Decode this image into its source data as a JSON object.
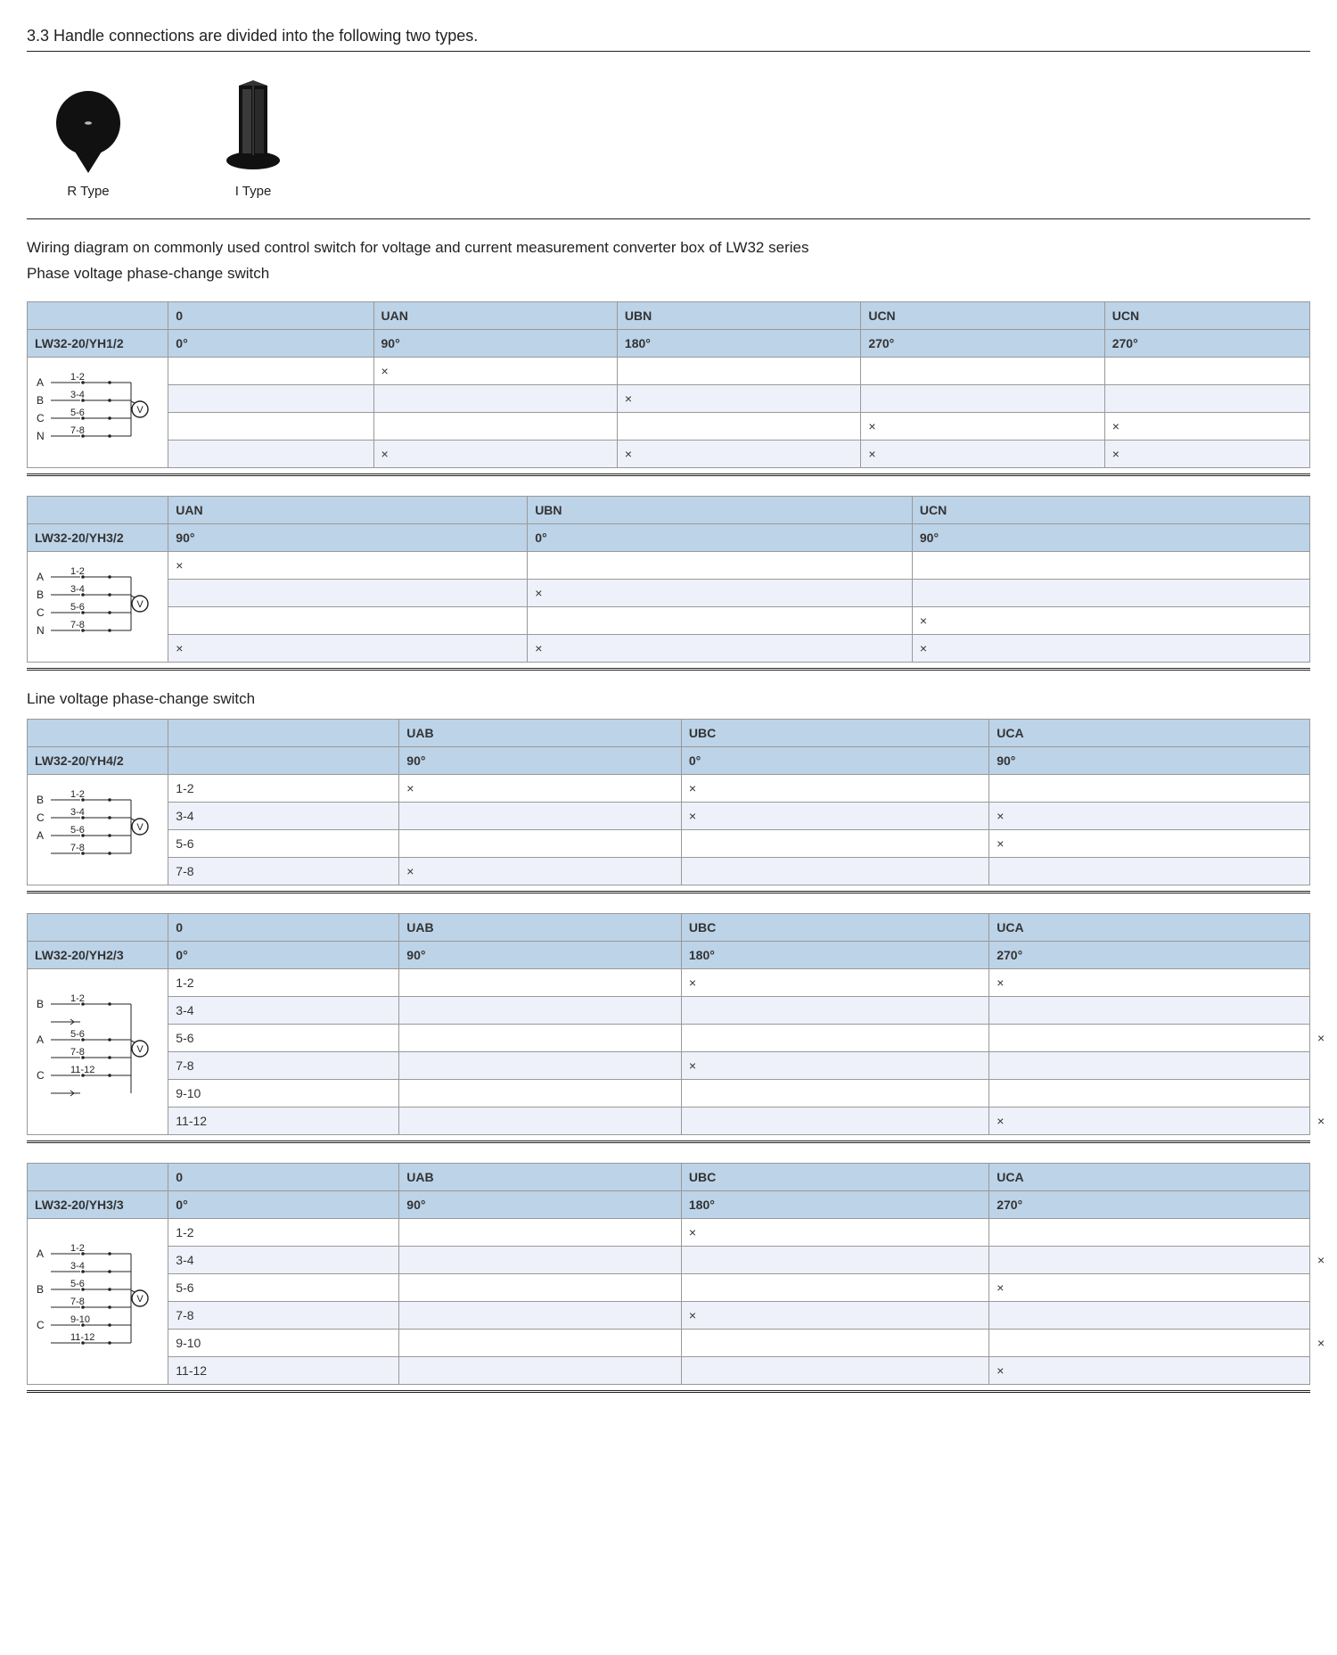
{
  "section_title": "3.3 Handle connections are divided into the following two types.",
  "handles": {
    "r_label": "R Type",
    "i_label": "I Type"
  },
  "desc_line1": "Wiring diagram on commonly used control switch for voltage and current measurement converter box of LW32 series",
  "desc_line2": "Phase voltage phase-change switch",
  "line_voltage_heading": "Line voltage phase-change switch",
  "colors": {
    "header_bg": "#bcd3e8",
    "even_bg": "#eef1fa",
    "border": "#999999",
    "rule": "#222222"
  },
  "table1": {
    "model": "LW32-20/YH1/2",
    "col_widths_pct": [
      11,
      16,
      19,
      19,
      19,
      16
    ],
    "headers": [
      "",
      "0",
      "UAN",
      "UBN",
      "UCN",
      "UCN"
    ],
    "angles": [
      "0°",
      "90°",
      "180°",
      "270°",
      "270°"
    ],
    "diagram_labels": [
      "A",
      "B",
      "C",
      "N"
    ],
    "diagram_pairs": [
      "1-2",
      "3-4",
      "5-6",
      "7-8"
    ],
    "rows": [
      [
        "",
        "×",
        "",
        "",
        ""
      ],
      [
        "",
        "",
        "×",
        "",
        ""
      ],
      [
        "",
        "",
        "",
        "×",
        "×"
      ],
      [
        "",
        "×",
        "×",
        "×",
        "×"
      ]
    ]
  },
  "table2": {
    "model": "LW32-20/YH3/2",
    "col_widths_pct": [
      11,
      28,
      30,
      31
    ],
    "headers": [
      "",
      "UAN",
      "UBN",
      "UCN"
    ],
    "angles": [
      "90°",
      "0°",
      "90°"
    ],
    "diagram_labels": [
      "A",
      "B",
      "C",
      "N"
    ],
    "diagram_pairs": [
      "1-2",
      "3-4",
      "5-6",
      "7-8"
    ],
    "rows": [
      [
        "×",
        "",
        ""
      ],
      [
        "",
        "×",
        ""
      ],
      [
        "",
        "",
        "×"
      ],
      [
        "×",
        "×",
        "×"
      ]
    ]
  },
  "table3": {
    "model": "LW32-20/YH4/2",
    "col_widths_pct": [
      11,
      18,
      22,
      24,
      25
    ],
    "headers": [
      "",
      "",
      "UAB",
      "UBC",
      "UCA"
    ],
    "angles": [
      "",
      "90°",
      "0°",
      "90°"
    ],
    "diagram_labels": [
      "B",
      "C",
      "A",
      ""
    ],
    "diagram_pairs": [
      "1-2",
      "3-4",
      "5-6",
      "7-8"
    ],
    "row_labels": [
      "1-2",
      "3-4",
      "5-6",
      "7-8"
    ],
    "rows": [
      [
        "×",
        "×",
        ""
      ],
      [
        "",
        "×",
        "×"
      ],
      [
        "",
        "",
        "×"
      ],
      [
        "×",
        "",
        ""
      ]
    ]
  },
  "table4": {
    "model": "LW32-20/YH2/3",
    "col_widths_pct": [
      11,
      18,
      22,
      24,
      25
    ],
    "headers": [
      "",
      "0",
      "UAB",
      "UBC",
      "UCA"
    ],
    "angles": [
      "0°",
      "90°",
      "180°",
      "270°"
    ],
    "diagram_labels": [
      "B",
      "",
      "A",
      "",
      "C",
      ""
    ],
    "diagram_pairs": [
      "1-2",
      "",
      "5-6",
      "7-8",
      "11-12",
      ""
    ],
    "row_labels": [
      "1-2",
      "3-4",
      "5-6",
      "7-8",
      "9-10",
      "11-12"
    ],
    "rows": [
      [
        "",
        "×",
        "×",
        ""
      ],
      [
        "",
        "",
        "",
        ""
      ],
      [
        "",
        "",
        "",
        "×"
      ],
      [
        "",
        "×",
        "",
        ""
      ],
      [
        "",
        "",
        "",
        ""
      ],
      [
        "",
        "",
        "×",
        "×"
      ]
    ]
  },
  "table5": {
    "model": "LW32-20/YH3/3",
    "col_widths_pct": [
      11,
      18,
      22,
      24,
      25
    ],
    "headers": [
      "",
      "0",
      "UAB",
      "UBC",
      "UCA"
    ],
    "angles": [
      "0°",
      "90°",
      "180°",
      "270°"
    ],
    "diagram_labels": [
      "A",
      "",
      "B",
      "",
      "C",
      ""
    ],
    "diagram_pairs": [
      "1-2",
      "3-4",
      "5-6",
      "7-8",
      "9-10",
      "11-12"
    ],
    "row_labels": [
      "1-2",
      "3-4",
      "5-6",
      "7-8",
      "9-10",
      "11-12"
    ],
    "rows": [
      [
        "",
        "×",
        "",
        ""
      ],
      [
        "",
        "",
        "",
        "×"
      ],
      [
        "",
        "",
        "×",
        ""
      ],
      [
        "",
        "×",
        "",
        ""
      ],
      [
        "",
        "",
        "",
        "×"
      ],
      [
        "",
        "",
        "×",
        ""
      ]
    ]
  }
}
